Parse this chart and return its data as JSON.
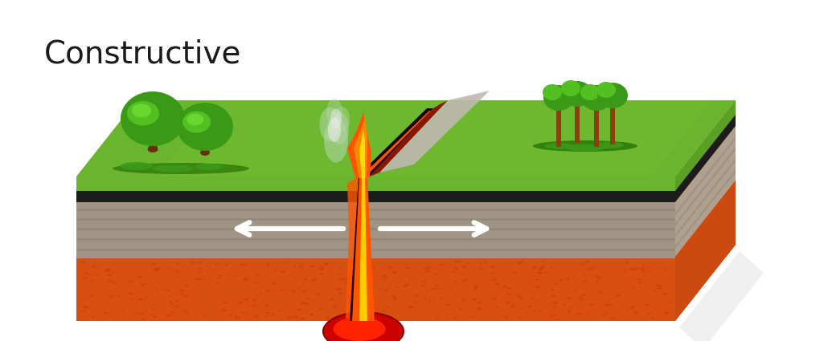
{
  "title": "Constructive",
  "title_fontsize": 28,
  "title_fontweight": "normal",
  "title_color": "#1a1a1a",
  "bg_color": "#ffffff",
  "colors": {
    "grass_top": "#6ab52e",
    "grass_dark": "#3d8c1a",
    "black_layer": "#1c1c1c",
    "rock_layer": "#a09585",
    "rock_dark": "#8a8070",
    "mantle_orange": "#d94f10",
    "mantle_light": "#e06020",
    "side_grass": "#5aa025",
    "side_black": "#222222",
    "side_rock": "#b0a090",
    "side_rock2": "#c8b8a8",
    "side_mantle": "#cc4a10",
    "lava_orange": "#ff5500",
    "lava_yellow": "#ffcc00",
    "lava_red": "#cc1100",
    "magma_red": "#cc0000",
    "magma_bright": "#ff2200",
    "rift_dark": "#550800",
    "rift_red": "#8b1500",
    "ash_gray": "#c0b8b0",
    "smoke_green": "#b8d8b0",
    "smoke_white": "#e8ede8",
    "arrow_white": "#ffffff",
    "shadow": "#d0d0d0"
  }
}
